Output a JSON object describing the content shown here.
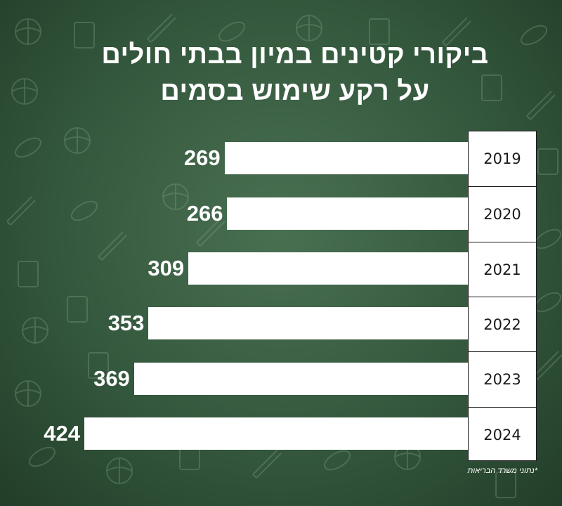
{
  "title": {
    "line1": "ביקורי קטינים במיון בבתי חולים",
    "line2": "על רקע שימוש בסמים"
  },
  "source": "*נתוני משרד הבריאות",
  "colors": {
    "background": "#34583d",
    "bar": "#ffffff",
    "text": "#ffffff",
    "year_text": "#1a1a1a"
  },
  "chart_data": {
    "type": "bar",
    "orientation": "horizontal",
    "categories": [
      "2019",
      "2020",
      "2021",
      "2022",
      "2023",
      "2024"
    ],
    "values": [
      269,
      266,
      309,
      353,
      369,
      424
    ],
    "title": "ביקורי קטינים במיון בבתי חולים על רקע שימוש בסמים",
    "xlabel": "",
    "ylabel": "",
    "data_labels": true,
    "grid": false,
    "legend": false
  }
}
